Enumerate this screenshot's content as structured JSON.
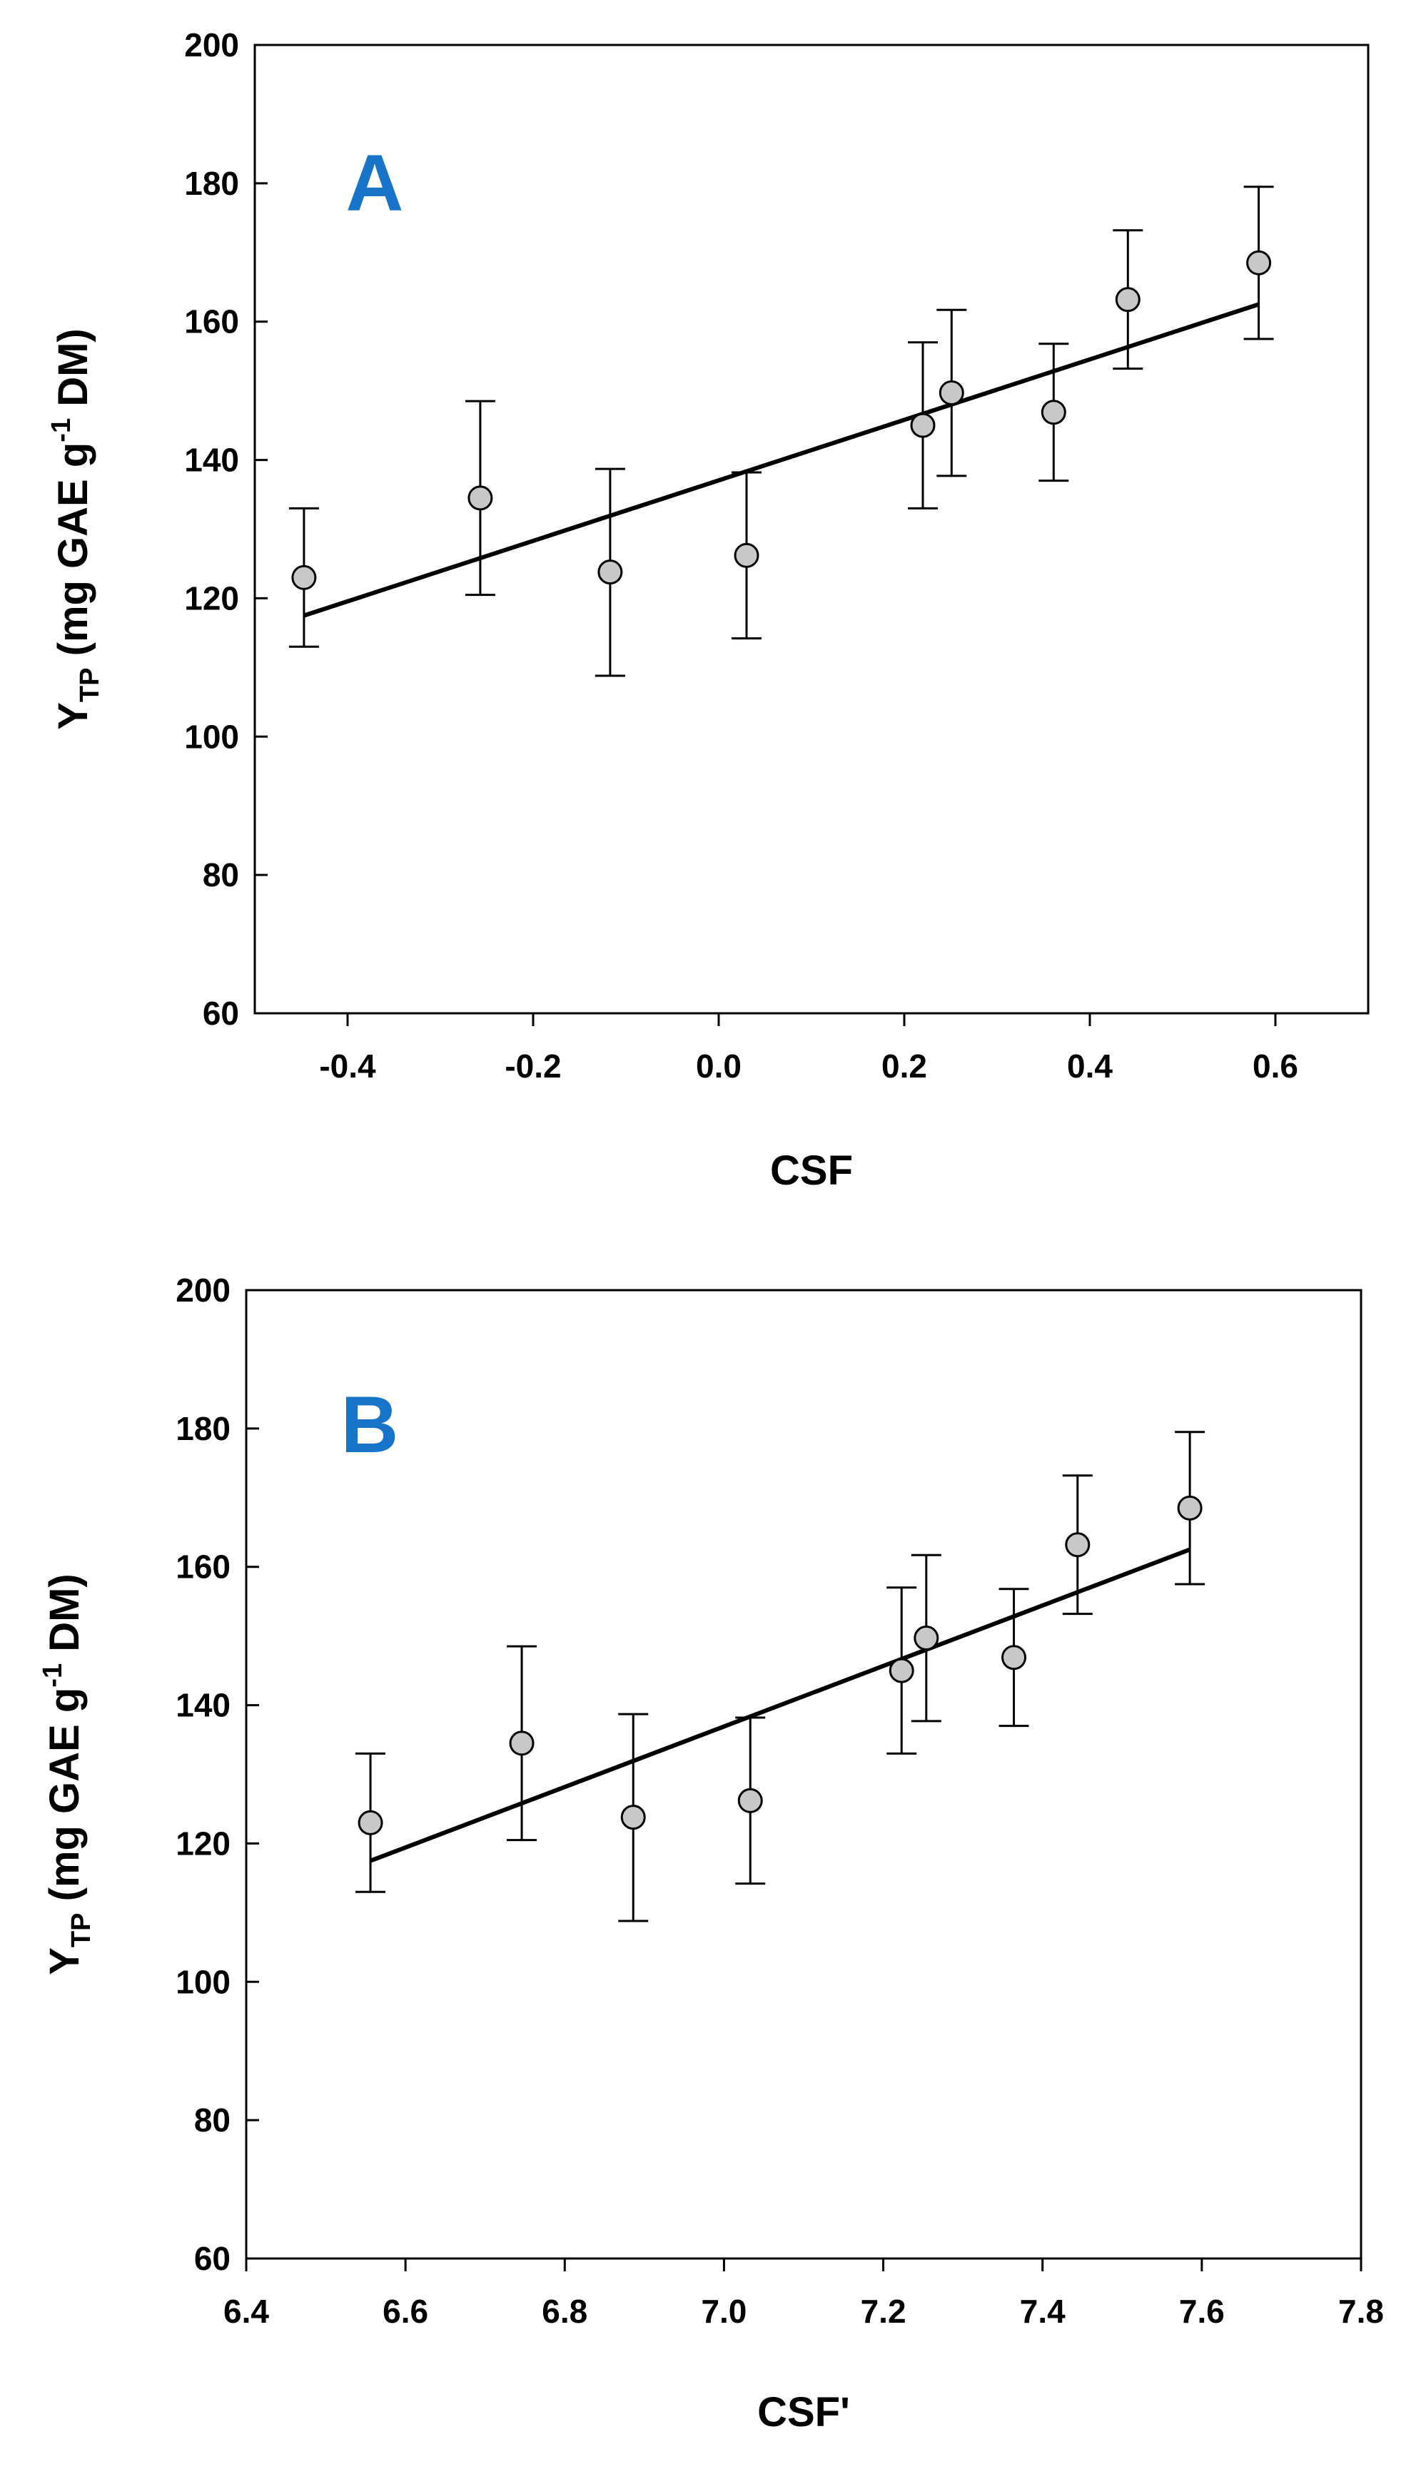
{
  "figure": {
    "letter_color": "#1874c8",
    "marker_fill": "#c8c8c8"
  },
  "chart_data": [
    {
      "type": "scatter",
      "panel_label": "A",
      "xlabel": "CSF",
      "ylabel": {
        "main": "Y",
        "sub": "TP",
        "rest_before_sup": "(mg GAE g",
        "sup": "-1",
        "rest_after_sup": " DM)"
      },
      "xlim": [
        -0.5,
        0.7
      ],
      "ylim": [
        60,
        200
      ],
      "xticks": [
        -0.4,
        -0.2,
        0.0,
        0.2,
        0.4,
        0.6
      ],
      "xtick_labels": [
        "-0.4",
        "-0.2",
        "0.0",
        "0.2",
        "0.4",
        "0.6"
      ],
      "yticks": [
        60,
        80,
        100,
        120,
        140,
        160,
        180,
        200
      ],
      "ytick_labels": [
        "60",
        "80",
        "100",
        "120",
        "140",
        "160",
        "180",
        "200"
      ],
      "x": [
        -0.447,
        -0.257,
        -0.117,
        0.03,
        0.22,
        0.251,
        0.361,
        0.441,
        0.582
      ],
      "y": [
        123.0,
        134.5,
        123.8,
        126.2,
        145.0,
        149.7,
        146.9,
        163.2,
        168.5
      ],
      "err_upper": [
        133.0,
        148.5,
        138.7,
        138.2,
        157.0,
        161.7,
        156.8,
        173.2,
        179.5
      ],
      "err_lower": [
        113.0,
        120.5,
        108.8,
        114.2,
        133.0,
        137.7,
        137.0,
        153.2,
        157.5
      ],
      "fit_line": {
        "x": [
          -0.447,
          0.582
        ],
        "y": [
          117.5,
          162.5
        ]
      }
    },
    {
      "type": "scatter",
      "panel_label": "B",
      "xlabel": "CSF'",
      "ylabel": {
        "main": "Y",
        "sub": "TP",
        "rest_before_sup": "(mg GAE g",
        "sup": "-1",
        "rest_after_sup": " DM)"
      },
      "xlim": [
        6.4,
        7.8
      ],
      "ylim": [
        60,
        200
      ],
      "xticks": [
        6.4,
        6.6,
        6.8,
        7.0,
        7.2,
        7.4,
        7.6,
        7.8
      ],
      "xtick_labels": [
        "6.4",
        "6.6",
        "6.8",
        "7.0",
        "7.2",
        "7.4",
        "7.6",
        "7.8"
      ],
      "yticks": [
        60,
        80,
        100,
        120,
        140,
        160,
        180,
        200
      ],
      "ytick_labels": [
        "60",
        "80",
        "100",
        "120",
        "140",
        "160",
        "180",
        "200"
      ],
      "x": [
        6.556,
        6.746,
        6.886,
        7.033,
        7.223,
        7.254,
        7.364,
        7.444,
        7.585
      ],
      "y": [
        123.0,
        134.5,
        123.8,
        126.2,
        145.0,
        149.7,
        146.9,
        163.2,
        168.5
      ],
      "err_upper": [
        133.0,
        148.5,
        138.7,
        138.2,
        157.0,
        161.7,
        156.8,
        173.2,
        179.5
      ],
      "err_lower": [
        113.0,
        120.5,
        108.8,
        114.2,
        133.0,
        137.7,
        137.0,
        153.2,
        157.5
      ],
      "fit_line": {
        "x": [
          6.556,
          7.585
        ],
        "y": [
          117.5,
          162.5
        ]
      }
    }
  ]
}
